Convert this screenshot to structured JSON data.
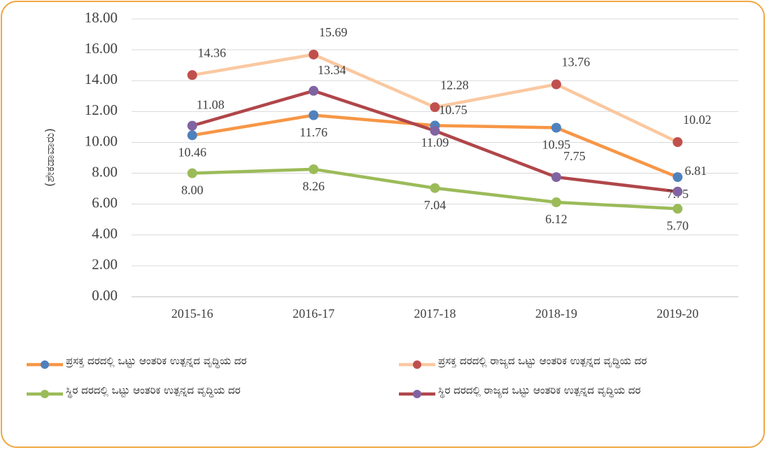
{
  "chart_data": {
    "type": "line",
    "y_label": "(ಶೇಕಡಾವಾರು)",
    "categories": [
      "2015-16",
      "2016-17",
      "2017-18",
      "2018-19",
      "2019-20"
    ],
    "series": [
      {
        "name": "ಪ್ರಸಕ್ತ ದರದಲ್ಲಿ ಒಟ್ಟು ಆಂತರಿಕ ಉತ್ಪನ್ನದ ವೃದ್ಧಿಯ ದರ",
        "color": "#f79646",
        "marker_color": "#4f81bd",
        "values": [
          10.46,
          11.76,
          11.09,
          10.95,
          7.75
        ],
        "value_labels": [
          "10.46",
          "11.76",
          "11.09",
          "10.95",
          "7.75"
        ]
      },
      {
        "name": "ಪ್ರಸಕ್ತ ದರದಲ್ಲಿ ರಾಜ್ಯದ ಒಟ್ಟು ಆಂತರಿಕ ಉತ್ಪನ್ನದ ವೃದ್ಧಿಯ ದರ",
        "color": "#fac8a0",
        "marker_color": "#c0504d",
        "values": [
          14.36,
          15.69,
          12.28,
          13.76,
          10.02
        ],
        "value_labels": [
          "14.36",
          "15.69",
          "12.28",
          "13.76",
          "10.02"
        ]
      },
      {
        "name": "ಸ್ಥಿರ ದರದಲ್ಲಿ ಒಟ್ಟು ಆಂತರಿಕ ಉತ್ಪನ್ನದ ವೃದ್ಧಿಯ ದರ",
        "color": "#9bbb59",
        "marker_color": "#9bbb59",
        "values": [
          8.0,
          8.26,
          7.04,
          6.12,
          5.7
        ],
        "value_labels": [
          "8.00",
          "8.26",
          "7.04",
          "6.12",
          "5.70"
        ]
      },
      {
        "name": "ಸ್ಥಿರ ದರದಲ್ಲಿ ರಾಜ್ಯದ ಒಟ್ಟು ಆಂತರಿಕ ಉತ್ಪನ್ನದ ವೃದ್ಧಿಯ ದರ",
        "color": "#b0464a",
        "marker_color": "#8064a2",
        "values": [
          11.08,
          13.34,
          10.75,
          7.75,
          6.81
        ],
        "value_labels": [
          "11.08",
          "13.34",
          "10.75",
          "7.75",
          "6.81"
        ]
      }
    ],
    "ylim": [
      0,
      18
    ],
    "yticks": [
      {
        "value": 0,
        "label": "0.00"
      },
      {
        "value": 2,
        "label": "2.00"
      },
      {
        "value": 4,
        "label": "4.00"
      },
      {
        "value": 6,
        "label": "6.00"
      },
      {
        "value": 8,
        "label": "8.00"
      },
      {
        "value": 10,
        "label": "10.00"
      },
      {
        "value": 12,
        "label": "12.00"
      },
      {
        "value": 14,
        "label": "14.00"
      },
      {
        "value": 16,
        "label": "16.00"
      },
      {
        "value": 18,
        "label": "18.00"
      }
    ],
    "grid": true
  }
}
